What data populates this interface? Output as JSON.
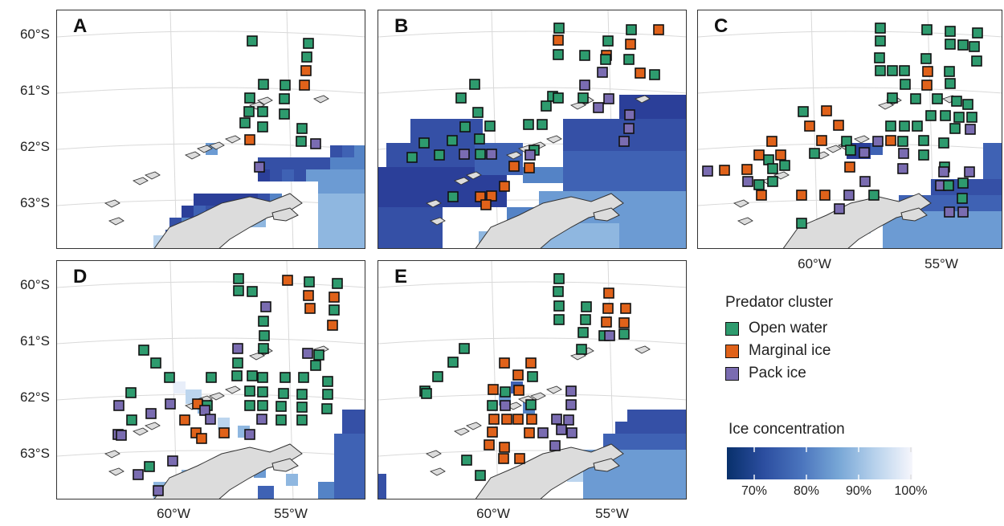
{
  "panels": [
    {
      "letter": "A"
    },
    {
      "letter": "B"
    },
    {
      "letter": "C"
    },
    {
      "letter": "D"
    },
    {
      "letter": "E"
    }
  ],
  "lat_labels": [
    "60°S",
    "61°S",
    "62°S",
    "63°S"
  ],
  "lon_labels": [
    "60°W",
    "55°W"
  ],
  "legend": {
    "title": "Predator cluster",
    "items": [
      {
        "label": "Open water",
        "color": "#2e9b6e"
      },
      {
        "label": "Marginal ice",
        "color": "#e0621a"
      },
      {
        "label": "Pack ice",
        "color": "#7a6cb1"
      }
    ]
  },
  "ice_legend": {
    "title": "Ice concentration",
    "ticks": [
      "70%",
      "80%",
      "90%",
      "100%"
    ]
  },
  "colors": {
    "open_water": "#2e9b6e",
    "marginal_ice": "#e0621a",
    "pack_ice": "#7a6cb1",
    "land": "#dcdcdc"
  }
}
